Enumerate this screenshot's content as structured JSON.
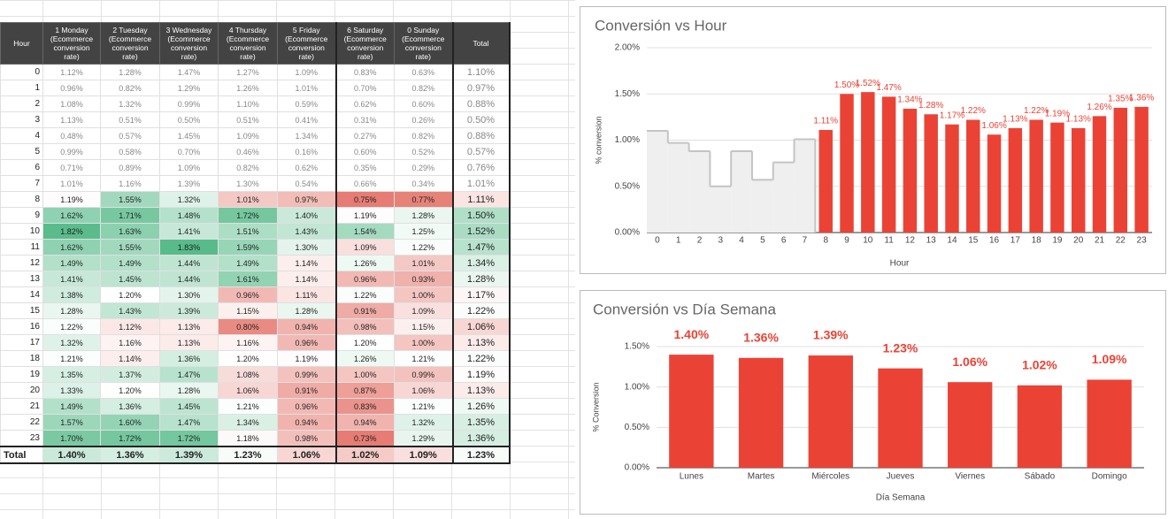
{
  "table": {
    "header": [
      "Hour",
      "1 Monday (Ecommerce conversion rate)",
      "2 Tuesday (Ecommerce conversion rate)",
      "3 Wednesday (Ecommerce conversion rate)",
      "4 Thursday (Ecommerce conversion rate)",
      "5 Friday (Ecommerce conversion rate)",
      "6 Saturday (Ecommerce conversion rate)",
      "0 Sunday (Ecommerce conversion rate)",
      "Total"
    ],
    "rows": [
      [
        "0",
        "1.12%",
        "1.28%",
        "1.47%",
        "1.27%",
        "1.09%",
        "0.83%",
        "0.63%",
        "1.10%"
      ],
      [
        "1",
        "0.96%",
        "0.82%",
        "1.29%",
        "1.26%",
        "1.01%",
        "0.70%",
        "0.82%",
        "0.97%"
      ],
      [
        "2",
        "1.08%",
        "1.32%",
        "0.99%",
        "1.10%",
        "0.59%",
        "0.62%",
        "0.60%",
        "0.88%"
      ],
      [
        "3",
        "1.13%",
        "0.51%",
        "0.50%",
        "0.51%",
        "0.41%",
        "0.31%",
        "0.26%",
        "0.50%"
      ],
      [
        "4",
        "0.48%",
        "0.57%",
        "1.45%",
        "1.09%",
        "1.34%",
        "0.27%",
        "0.82%",
        "0.88%"
      ],
      [
        "5",
        "0.99%",
        "0.58%",
        "0.70%",
        "0.46%",
        "0.16%",
        "0.60%",
        "0.52%",
        "0.57%"
      ],
      [
        "6",
        "0.71%",
        "0.89%",
        "1.09%",
        "0.82%",
        "0.62%",
        "0.35%",
        "0.29%",
        "0.76%"
      ],
      [
        "7",
        "1.01%",
        "1.16%",
        "1.39%",
        "1.30%",
        "0.54%",
        "0.66%",
        "0.34%",
        "1.01%"
      ],
      [
        "8",
        "1.19%",
        "1.55%",
        "1.32%",
        "1.01%",
        "0.97%",
        "0.75%",
        "0.77%",
        "1.11%"
      ],
      [
        "9",
        "1.62%",
        "1.71%",
        "1.48%",
        "1.72%",
        "1.40%",
        "1.19%",
        "1.28%",
        "1.50%"
      ],
      [
        "10",
        "1.82%",
        "1.63%",
        "1.41%",
        "1.51%",
        "1.43%",
        "1.54%",
        "1.25%",
        "1.52%"
      ],
      [
        "11",
        "1.62%",
        "1.55%",
        "1.83%",
        "1.59%",
        "1.30%",
        "1.09%",
        "1.22%",
        "1.47%"
      ],
      [
        "12",
        "1.49%",
        "1.49%",
        "1.44%",
        "1.49%",
        "1.14%",
        "1.26%",
        "1.01%",
        "1.34%"
      ],
      [
        "13",
        "1.41%",
        "1.45%",
        "1.44%",
        "1.61%",
        "1.14%",
        "0.96%",
        "0.93%",
        "1.28%"
      ],
      [
        "14",
        "1.38%",
        "1.20%",
        "1.30%",
        "0.96%",
        "1.11%",
        "1.22%",
        "1.00%",
        "1.17%"
      ],
      [
        "15",
        "1.28%",
        "1.43%",
        "1.39%",
        "1.15%",
        "1.28%",
        "0.91%",
        "1.09%",
        "1.22%"
      ],
      [
        "16",
        "1.22%",
        "1.12%",
        "1.13%",
        "0.80%",
        "0.94%",
        "0.98%",
        "1.15%",
        "1.06%"
      ],
      [
        "17",
        "1.32%",
        "1.16%",
        "1.13%",
        "1.16%",
        "0.96%",
        "1.20%",
        "1.00%",
        "1.13%"
      ],
      [
        "18",
        "1.21%",
        "1.14%",
        "1.36%",
        "1.20%",
        "1.19%",
        "1.26%",
        "1.21%",
        "1.22%"
      ],
      [
        "19",
        "1.35%",
        "1.37%",
        "1.47%",
        "1.08%",
        "0.99%",
        "1.00%",
        "0.99%",
        "1.19%"
      ],
      [
        "20",
        "1.33%",
        "1.20%",
        "1.28%",
        "1.06%",
        "0.91%",
        "0.87%",
        "1.06%",
        "1.13%"
      ],
      [
        "21",
        "1.49%",
        "1.36%",
        "1.45%",
        "1.21%",
        "0.96%",
        "0.83%",
        "1.21%",
        "1.26%"
      ],
      [
        "22",
        "1.57%",
        "1.60%",
        "1.47%",
        "1.34%",
        "0.94%",
        "0.94%",
        "1.32%",
        "1.35%"
      ],
      [
        "23",
        "1.70%",
        "1.72%",
        "1.72%",
        "1.18%",
        "0.98%",
        "0.73%",
        "1.29%",
        "1.36%"
      ],
      [
        "Total",
        "1.40%",
        "1.36%",
        "1.39%",
        "1.23%",
        "1.06%",
        "1.02%",
        "1.09%",
        "1.23%"
      ]
    ]
  },
  "chart_data": [
    {
      "type": "bar",
      "title": "Conversión vs Hour",
      "x_label": "Hour",
      "y_label": "% conversion",
      "categories": [
        "0",
        "1",
        "2",
        "3",
        "4",
        "5",
        "6",
        "7",
        "8",
        "9",
        "10",
        "11",
        "12",
        "13",
        "14",
        "15",
        "16",
        "17",
        "18",
        "19",
        "20",
        "21",
        "22",
        "23"
      ],
      "series": [
        {
          "type": "step-area",
          "color": "#efefef",
          "line_color": "#c4c4c4",
          "values": [
            1.1,
            0.97,
            0.88,
            0.5,
            0.88,
            0.57,
            0.76,
            1.01,
            null,
            null,
            null,
            null,
            null,
            null,
            null,
            null,
            null,
            null,
            null,
            null,
            null,
            null,
            null,
            null
          ]
        },
        {
          "type": "bar",
          "color": "#ea4335",
          "values": [
            null,
            null,
            null,
            null,
            null,
            null,
            null,
            null,
            1.11,
            1.5,
            1.52,
            1.47,
            1.34,
            1.28,
            1.17,
            1.22,
            1.06,
            1.13,
            1.22,
            1.19,
            1.13,
            1.26,
            1.35,
            1.36
          ],
          "value_labels": [
            null,
            null,
            null,
            null,
            null,
            null,
            null,
            null,
            "1.11%",
            "1.50%",
            "1.52%",
            "1.47%",
            "1.34%",
            "1.28%",
            "1.17%",
            "1.22%",
            "1.06%",
            "1.13%",
            "1.22%",
            "1.19%",
            "1.13%",
            "1.26%",
            "1.35%",
            "1.36%"
          ]
        }
      ],
      "ylim": [
        0,
        2
      ],
      "yticks": [
        {
          "value": 0,
          "label": "0.00%"
        },
        {
          "value": 0.5,
          "label": "0.50%"
        },
        {
          "value": 1,
          "label": "1.00%"
        },
        {
          "value": 1.5,
          "label": "1.50%"
        },
        {
          "value": 2,
          "label": "2.00%"
        }
      ],
      "grid": true
    },
    {
      "type": "bar",
      "title": "Conversión vs Día Semana",
      "x_label": "Día Semana",
      "y_label": "% Conversion",
      "categories": [
        "Lunes",
        "Martes",
        "Miércoles",
        "Jueves",
        "Viernes",
        "Sábado",
        "Domingo"
      ],
      "series": [
        {
          "type": "bar",
          "color": "#ea4335",
          "values": [
            1.4,
            1.36,
            1.39,
            1.23,
            1.06,
            1.02,
            1.09
          ],
          "value_labels": [
            "1.40%",
            "1.36%",
            "1.39%",
            "1.23%",
            "1.06%",
            "1.02%",
            "1.09%"
          ]
        }
      ],
      "ylim": [
        0,
        1.5
      ],
      "yticks": [
        {
          "value": 0,
          "label": "0.00%"
        },
        {
          "value": 0.5,
          "label": "0.50%"
        },
        {
          "value": 1,
          "label": "1.00%"
        },
        {
          "value": 1.5,
          "label": "1.50%"
        }
      ],
      "grid": true
    }
  ]
}
